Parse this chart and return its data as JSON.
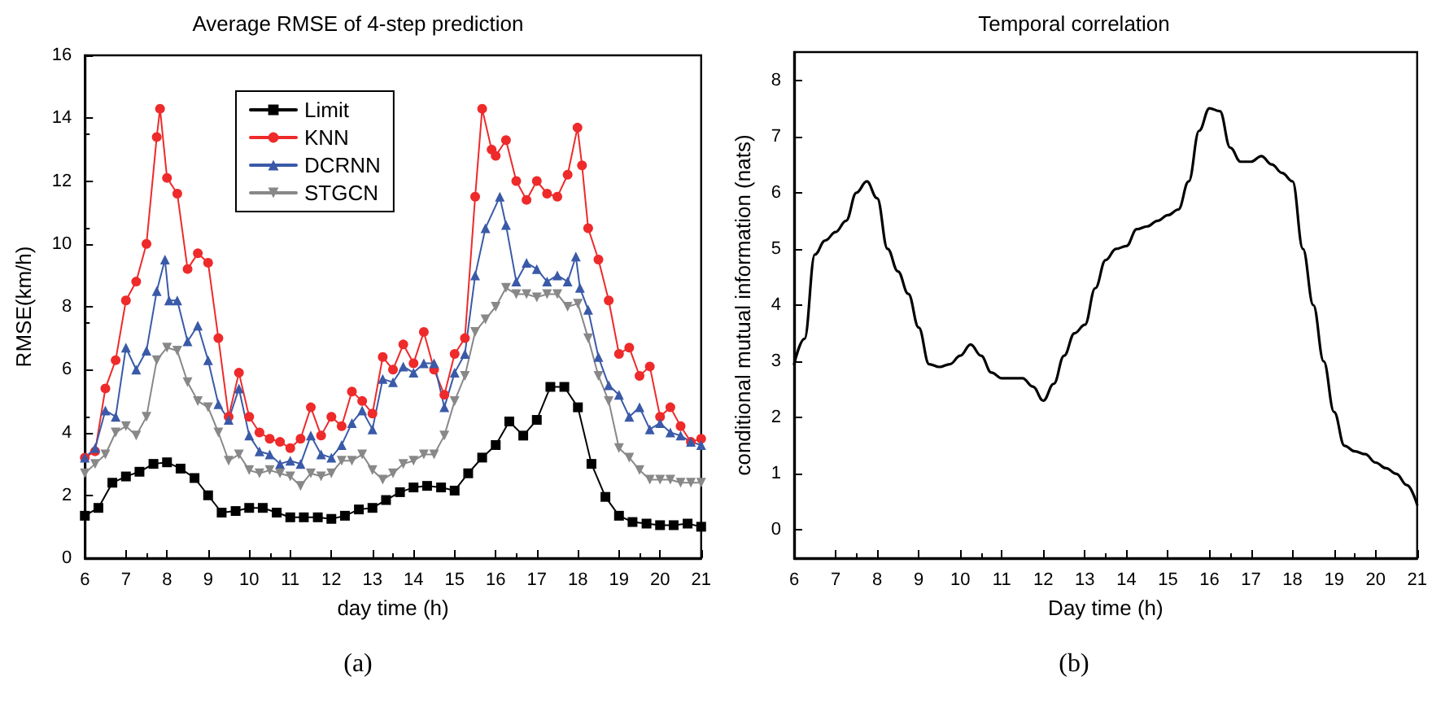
{
  "chart_data": [
    {
      "type": "line",
      "title": "Average RMSE of 4-step prediction",
      "xlabel": "day time (h)",
      "ylabel": "RMSE(km/h)",
      "annotations": [
        "(a)"
      ],
      "xlim": [
        6,
        21
      ],
      "ylim": [
        0,
        16
      ],
      "xticks": [
        6,
        7,
        8,
        9,
        10,
        11,
        12,
        13,
        14,
        15,
        16,
        17,
        18,
        19,
        20,
        21
      ],
      "yticks": [
        0,
        2,
        4,
        6,
        8,
        10,
        12,
        14,
        16
      ],
      "grid": false,
      "legend": "top",
      "line_style": "solid",
      "series": [
        {
          "name": "Limit",
          "color": "#000000",
          "marker": "square",
          "x": [
            6,
            6.33,
            6.67,
            7,
            7.33,
            7.67,
            8,
            8.33,
            8.67,
            9,
            9.33,
            9.67,
            10,
            10.33,
            10.67,
            11,
            11.33,
            11.67,
            12,
            12.33,
            12.67,
            13,
            13.33,
            13.67,
            14,
            14.33,
            14.67,
            15,
            15.33,
            15.67,
            16,
            16.33,
            16.67,
            17,
            17.33,
            17.67,
            18,
            18.33,
            18.67,
            19,
            19.33,
            19.67,
            20,
            20.33,
            20.67,
            21
          ],
          "values": [
            1.35,
            1.6,
            2.4,
            2.6,
            2.75,
            3.0,
            3.05,
            2.85,
            2.55,
            2.0,
            1.45,
            1.5,
            1.6,
            1.6,
            1.45,
            1.3,
            1.3,
            1.3,
            1.25,
            1.35,
            1.55,
            1.6,
            1.85,
            2.1,
            2.25,
            2.3,
            2.25,
            2.15,
            2.7,
            3.2,
            3.6,
            4.35,
            3.9,
            4.4,
            5.45,
            5.45,
            4.8,
            3.0,
            1.95,
            1.35,
            1.15,
            1.1,
            1.05,
            1.05,
            1.1,
            1.0
          ]
        },
        {
          "name": "KNN",
          "color": "#ee2a2a",
          "marker": "circle",
          "x": [
            6,
            6.25,
            6.5,
            6.75,
            7,
            7.25,
            7.5,
            7.75,
            7.83,
            8,
            8.25,
            8.5,
            8.75,
            9,
            9.25,
            9.5,
            9.75,
            10,
            10.25,
            10.5,
            10.75,
            11,
            11.25,
            11.5,
            11.75,
            12,
            12.25,
            12.5,
            12.75,
            13,
            13.25,
            13.5,
            13.75,
            14,
            14.25,
            14.5,
            14.75,
            15,
            15.25,
            15.5,
            15.67,
            15.9,
            16,
            16.25,
            16.5,
            16.75,
            17,
            17.25,
            17.5,
            17.75,
            17.99,
            18.1,
            18.25,
            18.5,
            18.75,
            19,
            19.25,
            19.5,
            19.75,
            20,
            20.25,
            20.5,
            20.75,
            21
          ],
          "values": [
            3.2,
            3.4,
            5.4,
            6.3,
            8.2,
            8.8,
            10.0,
            13.4,
            14.3,
            12.1,
            11.6,
            9.2,
            9.7,
            9.4,
            7.0,
            4.5,
            5.9,
            4.5,
            4.0,
            3.8,
            3.7,
            3.5,
            3.8,
            4.8,
            3.9,
            4.5,
            4.2,
            5.3,
            5.0,
            4.6,
            6.4,
            6.0,
            6.8,
            6.2,
            7.2,
            6.0,
            5.2,
            6.5,
            7.0,
            11.5,
            14.3,
            13.0,
            12.8,
            13.3,
            12.0,
            11.4,
            12.0,
            11.6,
            11.5,
            12.2,
            13.7,
            12.5,
            10.5,
            9.5,
            8.2,
            6.5,
            6.7,
            5.8,
            6.1,
            4.5,
            4.8,
            4.2,
            3.7,
            3.8
          ]
        },
        {
          "name": "DCRNN",
          "color": "#3a5aa8",
          "marker": "triangle",
          "x": [
            6,
            6.25,
            6.5,
            6.75,
            7,
            7.25,
            7.5,
            7.75,
            7.95,
            8.05,
            8.25,
            8.5,
            8.75,
            9,
            9.25,
            9.5,
            9.75,
            10,
            10.25,
            10.5,
            10.75,
            11,
            11.25,
            11.5,
            11.75,
            12,
            12.25,
            12.5,
            12.75,
            13,
            13.25,
            13.5,
            13.75,
            14,
            14.25,
            14.5,
            14.75,
            15,
            15.25,
            15.5,
            15.75,
            16.1,
            16.25,
            16.5,
            16.75,
            17,
            17.25,
            17.5,
            17.75,
            17.95,
            18.05,
            18.25,
            18.5,
            18.75,
            19,
            19.25,
            19.5,
            19.75,
            20,
            20.25,
            20.5,
            20.75,
            21
          ],
          "values": [
            3.2,
            3.5,
            4.7,
            4.5,
            6.7,
            6.0,
            6.6,
            8.5,
            9.5,
            8.2,
            8.2,
            6.9,
            7.4,
            6.3,
            4.9,
            4.4,
            5.4,
            3.9,
            3.4,
            3.3,
            3.0,
            3.1,
            3.0,
            3.9,
            3.3,
            3.2,
            3.6,
            4.3,
            4.7,
            4.1,
            5.7,
            5.6,
            6.1,
            5.9,
            6.2,
            6.2,
            4.8,
            5.9,
            6.5,
            9.0,
            10.5,
            11.5,
            10.6,
            8.8,
            9.4,
            9.2,
            8.8,
            9.0,
            8.8,
            9.6,
            8.6,
            7.9,
            6.4,
            5.5,
            5.2,
            4.5,
            4.8,
            4.1,
            4.3,
            4.0,
            3.9,
            3.7,
            3.6
          ]
        },
        {
          "name": "STGCN",
          "color": "#888888",
          "marker": "triangle-down",
          "x": [
            6,
            6.25,
            6.5,
            6.75,
            7,
            7.25,
            7.5,
            7.75,
            8,
            8.25,
            8.5,
            8.75,
            9,
            9.25,
            9.5,
            9.75,
            10,
            10.25,
            10.5,
            10.75,
            11,
            11.25,
            11.5,
            11.75,
            12,
            12.25,
            12.5,
            12.75,
            13,
            13.25,
            13.5,
            13.75,
            14,
            14.25,
            14.5,
            14.75,
            15,
            15.25,
            15.5,
            15.75,
            16,
            16.25,
            16.5,
            16.75,
            17,
            17.25,
            17.5,
            17.75,
            18,
            18.25,
            18.5,
            18.75,
            19,
            19.25,
            19.5,
            19.75,
            20,
            20.25,
            20.5,
            20.75,
            21
          ],
          "values": [
            2.7,
            3.0,
            3.3,
            4.0,
            4.2,
            3.9,
            4.5,
            6.3,
            6.7,
            6.6,
            5.6,
            5.0,
            4.8,
            4.0,
            3.1,
            3.3,
            2.8,
            2.7,
            2.8,
            2.7,
            2.6,
            2.3,
            2.7,
            2.6,
            2.7,
            3.1,
            3.1,
            3.3,
            2.8,
            2.5,
            2.7,
            3.0,
            3.1,
            3.3,
            3.3,
            3.9,
            5.0,
            5.8,
            7.2,
            7.6,
            8.0,
            8.6,
            8.4,
            8.4,
            8.3,
            8.4,
            8.4,
            8.0,
            8.1,
            7.0,
            5.8,
            5.0,
            3.5,
            3.2,
            2.8,
            2.5,
            2.5,
            2.5,
            2.4,
            2.4,
            2.4
          ]
        }
      ]
    },
    {
      "type": "line",
      "title": "Temporal correlation",
      "xlabel": "Day time (h)",
      "ylabel": "conditional mutual information (nats)",
      "annotations": [
        "(b)"
      ],
      "xlim": [
        6,
        21
      ],
      "ylim": [
        -0.5,
        8.5
      ],
      "xticks": [
        6,
        7,
        8,
        9,
        10,
        11,
        12,
        13,
        14,
        15,
        16,
        17,
        18,
        19,
        20,
        21
      ],
      "yticks": [
        0,
        1,
        2,
        3,
        4,
        5,
        6,
        7,
        8
      ],
      "grid": false,
      "legend": false,
      "marker": "none",
      "line_style": "solid",
      "series": [
        {
          "color": "#000000",
          "x": [
            6,
            6.25,
            6.5,
            6.75,
            7,
            7.25,
            7.5,
            7.75,
            8,
            8.25,
            8.5,
            8.75,
            9,
            9.25,
            9.5,
            9.75,
            10,
            10.25,
            10.5,
            10.75,
            11,
            11.25,
            11.5,
            11.75,
            12,
            12.25,
            12.5,
            12.75,
            13,
            13.25,
            13.5,
            13.75,
            14,
            14.25,
            14.5,
            14.75,
            15,
            15.25,
            15.5,
            15.75,
            16,
            16.25,
            16.5,
            16.75,
            17,
            17.25,
            17.5,
            17.75,
            18,
            18.25,
            18.5,
            18.75,
            19,
            19.25,
            19.5,
            19.75,
            20,
            20.25,
            20.5,
            20.75,
            21
          ],
          "values": [
            2.95,
            3.4,
            4.9,
            5.15,
            5.3,
            5.5,
            6.0,
            6.2,
            5.9,
            5.0,
            4.6,
            4.2,
            3.6,
            2.95,
            2.9,
            2.95,
            3.1,
            3.3,
            3.1,
            2.8,
            2.7,
            2.7,
            2.7,
            2.55,
            2.3,
            2.6,
            3.1,
            3.5,
            3.65,
            4.3,
            4.8,
            5.0,
            5.05,
            5.35,
            5.4,
            5.5,
            5.6,
            5.7,
            6.2,
            7.1,
            7.5,
            7.45,
            6.8,
            6.55,
            6.55,
            6.65,
            6.5,
            6.35,
            6.2,
            5.0,
            4.0,
            3.0,
            2.1,
            1.5,
            1.4,
            1.35,
            1.2,
            1.1,
            1.0,
            0.8,
            0.45
          ]
        }
      ]
    }
  ]
}
